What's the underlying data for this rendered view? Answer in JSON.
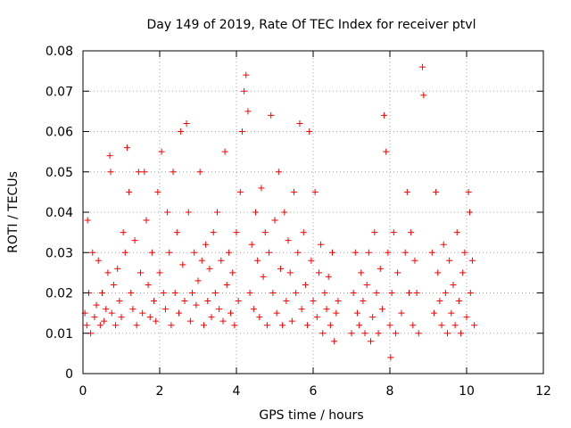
{
  "chart_data": {
    "type": "scatter",
    "title": "Day 149 of 2019, Rate Of TEC Index for receiver ptvl",
    "xlabel": "GPS time / hours",
    "ylabel": "ROTI / TECUs",
    "xlim": [
      0,
      12
    ],
    "ylim": [
      0,
      0.08
    ],
    "x_ticks": [
      0,
      2,
      4,
      6,
      8,
      10,
      12
    ],
    "x_tick_labels": [
      "0",
      "2",
      "4",
      "6",
      "8",
      "10",
      "12"
    ],
    "y_ticks": [
      0,
      0.01,
      0.02,
      0.03,
      0.04,
      0.05,
      0.06,
      0.07,
      0.08
    ],
    "y_tick_labels": [
      "0",
      "0.01",
      "0.02",
      "0.03",
      "0.04",
      "0.05",
      "0.06",
      "0.07",
      "0.08"
    ],
    "grid": true,
    "marker": "+",
    "color": "#ff0000",
    "series": [
      {
        "name": "ROTI",
        "points": [
          [
            0.05,
            0.015
          ],
          [
            0.1,
            0.012
          ],
          [
            0.12,
            0.038
          ],
          [
            0.15,
            0.02
          ],
          [
            0.2,
            0.01
          ],
          [
            0.25,
            0.03
          ],
          [
            0.3,
            0.014
          ],
          [
            0.35,
            0.017
          ],
          [
            0.4,
            0.028
          ],
          [
            0.45,
            0.012
          ],
          [
            0.5,
            0.02
          ],
          [
            0.55,
            0.013
          ],
          [
            0.6,
            0.016
          ],
          [
            0.65,
            0.025
          ],
          [
            0.7,
            0.054
          ],
          [
            0.72,
            0.05
          ],
          [
            0.75,
            0.015
          ],
          [
            0.8,
            0.022
          ],
          [
            0.85,
            0.012
          ],
          [
            0.9,
            0.026
          ],
          [
            0.95,
            0.018
          ],
          [
            1.0,
            0.014
          ],
          [
            1.05,
            0.035
          ],
          [
            1.1,
            0.03
          ],
          [
            1.15,
            0.056
          ],
          [
            1.2,
            0.045
          ],
          [
            1.25,
            0.02
          ],
          [
            1.3,
            0.016
          ],
          [
            1.35,
            0.033
          ],
          [
            1.4,
            0.012
          ],
          [
            1.45,
            0.05
          ],
          [
            1.5,
            0.025
          ],
          [
            1.55,
            0.015
          ],
          [
            1.6,
            0.05
          ],
          [
            1.65,
            0.038
          ],
          [
            1.7,
            0.022
          ],
          [
            1.75,
            0.014
          ],
          [
            1.8,
            0.03
          ],
          [
            1.85,
            0.018
          ],
          [
            1.9,
            0.013
          ],
          [
            1.95,
            0.045
          ],
          [
            2.0,
            0.025
          ],
          [
            2.05,
            0.055
          ],
          [
            2.1,
            0.02
          ],
          [
            2.15,
            0.016
          ],
          [
            2.2,
            0.04
          ],
          [
            2.25,
            0.03
          ],
          [
            2.3,
            0.012
          ],
          [
            2.35,
            0.05
          ],
          [
            2.4,
            0.02
          ],
          [
            2.45,
            0.035
          ],
          [
            2.5,
            0.015
          ],
          [
            2.55,
            0.06
          ],
          [
            2.6,
            0.027
          ],
          [
            2.65,
            0.018
          ],
          [
            2.7,
            0.062
          ],
          [
            2.75,
            0.04
          ],
          [
            2.8,
            0.013
          ],
          [
            2.85,
            0.02
          ],
          [
            2.9,
            0.03
          ],
          [
            2.95,
            0.017
          ],
          [
            3.0,
            0.023
          ],
          [
            3.05,
            0.05
          ],
          [
            3.1,
            0.028
          ],
          [
            3.15,
            0.012
          ],
          [
            3.2,
            0.032
          ],
          [
            3.25,
            0.018
          ],
          [
            3.3,
            0.026
          ],
          [
            3.35,
            0.014
          ],
          [
            3.4,
            0.035
          ],
          [
            3.45,
            0.02
          ],
          [
            3.5,
            0.04
          ],
          [
            3.55,
            0.016
          ],
          [
            3.6,
            0.028
          ],
          [
            3.65,
            0.013
          ],
          [
            3.7,
            0.055
          ],
          [
            3.75,
            0.022
          ],
          [
            3.8,
            0.03
          ],
          [
            3.85,
            0.015
          ],
          [
            3.9,
            0.025
          ],
          [
            3.95,
            0.012
          ],
          [
            4.0,
            0.035
          ],
          [
            4.05,
            0.018
          ],
          [
            4.1,
            0.045
          ],
          [
            4.15,
            0.06
          ],
          [
            4.2,
            0.07
          ],
          [
            4.25,
            0.074
          ],
          [
            4.3,
            0.065
          ],
          [
            4.35,
            0.02
          ],
          [
            4.4,
            0.032
          ],
          [
            4.45,
            0.016
          ],
          [
            4.5,
            0.04
          ],
          [
            4.55,
            0.028
          ],
          [
            4.6,
            0.014
          ],
          [
            4.65,
            0.046
          ],
          [
            4.7,
            0.024
          ],
          [
            4.75,
            0.035
          ],
          [
            4.8,
            0.012
          ],
          [
            4.85,
            0.03
          ],
          [
            4.9,
            0.064
          ],
          [
            4.95,
            0.02
          ],
          [
            5.0,
            0.038
          ],
          [
            5.05,
            0.015
          ],
          [
            5.1,
            0.05
          ],
          [
            5.15,
            0.026
          ],
          [
            5.2,
            0.012
          ],
          [
            5.25,
            0.04
          ],
          [
            5.3,
            0.018
          ],
          [
            5.35,
            0.033
          ],
          [
            5.4,
            0.025
          ],
          [
            5.45,
            0.013
          ],
          [
            5.5,
            0.045
          ],
          [
            5.55,
            0.02
          ],
          [
            5.6,
            0.03
          ],
          [
            5.65,
            0.062
          ],
          [
            5.7,
            0.016
          ],
          [
            5.75,
            0.035
          ],
          [
            5.8,
            0.022
          ],
          [
            5.85,
            0.012
          ],
          [
            5.9,
            0.06
          ],
          [
            5.95,
            0.028
          ],
          [
            6.0,
            0.018
          ],
          [
            6.05,
            0.045
          ],
          [
            6.1,
            0.014
          ],
          [
            6.15,
            0.025
          ],
          [
            6.2,
            0.032
          ],
          [
            6.25,
            0.01
          ],
          [
            6.3,
            0.02
          ],
          [
            6.35,
            0.016
          ],
          [
            6.4,
            0.024
          ],
          [
            6.45,
            0.012
          ],
          [
            6.5,
            0.03
          ],
          [
            6.55,
            0.008
          ],
          [
            6.6,
            0.015
          ],
          [
            6.65,
            0.018
          ],
          [
            7.0,
            0.01
          ],
          [
            7.05,
            0.02
          ],
          [
            7.1,
            0.03
          ],
          [
            7.15,
            0.015
          ],
          [
            7.2,
            0.012
          ],
          [
            7.25,
            0.025
          ],
          [
            7.3,
            0.018
          ],
          [
            7.35,
            0.01
          ],
          [
            7.4,
            0.022
          ],
          [
            7.45,
            0.03
          ],
          [
            7.5,
            0.008
          ],
          [
            7.55,
            0.014
          ],
          [
            7.6,
            0.035
          ],
          [
            7.65,
            0.02
          ],
          [
            7.7,
            0.01
          ],
          [
            7.75,
            0.026
          ],
          [
            7.8,
            0.016
          ],
          [
            7.85,
            0.064
          ],
          [
            7.9,
            0.055
          ],
          [
            7.95,
            0.03
          ],
          [
            8.0,
            0.012
          ],
          [
            8.02,
            0.004
          ],
          [
            8.05,
            0.02
          ],
          [
            8.1,
            0.035
          ],
          [
            8.15,
            0.01
          ],
          [
            8.2,
            0.025
          ],
          [
            8.3,
            0.015
          ],
          [
            8.4,
            0.03
          ],
          [
            8.45,
            0.045
          ],
          [
            8.5,
            0.02
          ],
          [
            8.55,
            0.035
          ],
          [
            8.6,
            0.012
          ],
          [
            8.65,
            0.028
          ],
          [
            8.7,
            0.02
          ],
          [
            8.75,
            0.01
          ],
          [
            8.85,
            0.076
          ],
          [
            8.88,
            0.069
          ],
          [
            9.1,
            0.03
          ],
          [
            9.15,
            0.015
          ],
          [
            9.2,
            0.045
          ],
          [
            9.25,
            0.025
          ],
          [
            9.3,
            0.018
          ],
          [
            9.35,
            0.012
          ],
          [
            9.4,
            0.032
          ],
          [
            9.45,
            0.02
          ],
          [
            9.5,
            0.01
          ],
          [
            9.55,
            0.028
          ],
          [
            9.6,
            0.015
          ],
          [
            9.65,
            0.022
          ],
          [
            9.7,
            0.012
          ],
          [
            9.75,
            0.035
          ],
          [
            9.8,
            0.018
          ],
          [
            9.85,
            0.01
          ],
          [
            9.9,
            0.025
          ],
          [
            9.95,
            0.03
          ],
          [
            10.0,
            0.014
          ],
          [
            10.05,
            0.045
          ],
          [
            10.08,
            0.04
          ],
          [
            10.1,
            0.02
          ],
          [
            10.15,
            0.028
          ],
          [
            10.2,
            0.012
          ]
        ]
      }
    ]
  }
}
